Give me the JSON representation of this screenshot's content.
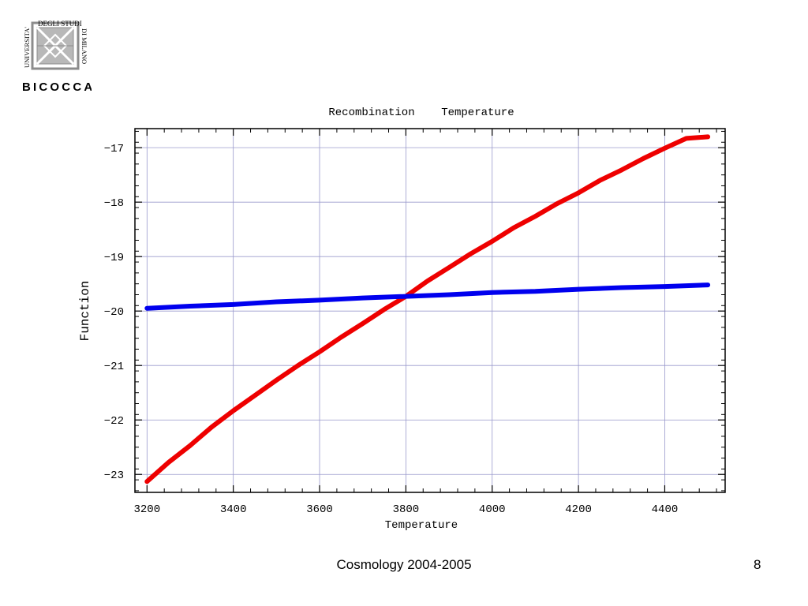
{
  "logo": {
    "top_text": "DEGLI STUDI",
    "left_text": "UNIVERSITA'",
    "right_text": "DI MILANO",
    "bottom_text": "BICOCCA",
    "emblem_color": "#8c8c8c"
  },
  "footer": {
    "title": "Cosmology 2004-2005",
    "page_number": "8"
  },
  "chart_data": {
    "type": "line",
    "title": "Recombination    Temperature",
    "xlabel": "Temperature",
    "ylabel": "Function",
    "xlim": [
      3172,
      4540
    ],
    "ylim": [
      -23.33,
      -16.65
    ],
    "xticks": [
      3200,
      3400,
      3600,
      3800,
      4000,
      4200,
      4400
    ],
    "yticks": [
      -17,
      -18,
      -19,
      -20,
      -21,
      -22,
      -23
    ],
    "ytick_labels": [
      "−17",
      "−18",
      "−19",
      "−20",
      "−21",
      "−22",
      "−23"
    ],
    "grid": true,
    "grid_color": "#9999cc",
    "series": [
      {
        "color": "#ee0000",
        "x": [
          3200,
          3250,
          3300,
          3350,
          3400,
          3450,
          3500,
          3550,
          3600,
          3650,
          3700,
          3750,
          3800,
          3850,
          3900,
          3950,
          4000,
          4050,
          4100,
          4150,
          4200,
          4250,
          4300,
          4350,
          4400,
          4450,
          4500
        ],
        "y": [
          -23.13,
          -22.78,
          -22.47,
          -22.13,
          -21.83,
          -21.55,
          -21.27,
          -21.0,
          -20.75,
          -20.48,
          -20.23,
          -19.97,
          -19.73,
          -19.45,
          -19.2,
          -18.95,
          -18.72,
          -18.47,
          -18.26,
          -18.03,
          -17.83,
          -17.6,
          -17.41,
          -17.2,
          -17.01,
          -16.83,
          -16.8
        ]
      },
      {
        "color": "#0000ee",
        "x": [
          3200,
          3300,
          3400,
          3500,
          3600,
          3700,
          3800,
          3900,
          4000,
          4100,
          4200,
          4300,
          4400,
          4500
        ],
        "y": [
          -19.95,
          -19.91,
          -19.88,
          -19.83,
          -19.8,
          -19.76,
          -19.73,
          -19.7,
          -19.66,
          -19.64,
          -19.6,
          -19.57,
          -19.55,
          -19.52
        ]
      }
    ]
  }
}
